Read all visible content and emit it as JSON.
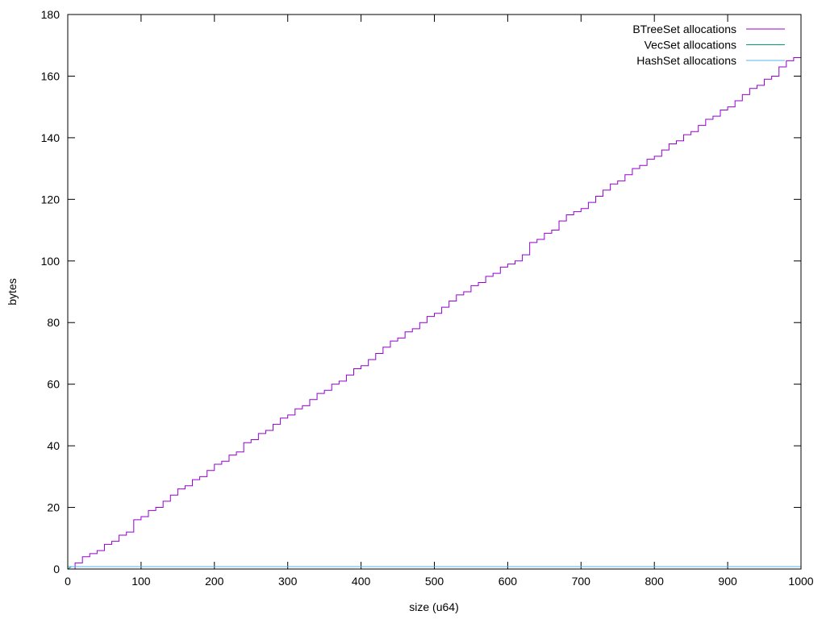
{
  "chart_data": {
    "type": "line",
    "title": "",
    "xlabel": "size (u64)",
    "ylabel": "bytes",
    "xlim": [
      0,
      1000
    ],
    "ylim": [
      0,
      180
    ],
    "xticks": [
      0,
      100,
      200,
      300,
      400,
      500,
      600,
      700,
      800,
      900,
      1000
    ],
    "yticks": [
      0,
      20,
      40,
      60,
      80,
      100,
      120,
      140,
      160,
      180
    ],
    "grid": false,
    "legend_position": "top-right",
    "series": [
      {
        "name": "BTreeSet allocations",
        "color": "#9400d3",
        "style": "steps",
        "x": [
          0,
          10,
          20,
          30,
          40,
          50,
          60,
          70,
          80,
          90,
          100,
          110,
          120,
          130,
          140,
          150,
          160,
          170,
          180,
          190,
          200,
          210,
          220,
          230,
          240,
          250,
          260,
          270,
          280,
          290,
          300,
          310,
          320,
          330,
          340,
          350,
          360,
          370,
          380,
          390,
          400,
          410,
          420,
          430,
          440,
          450,
          460,
          470,
          480,
          490,
          500,
          510,
          520,
          530,
          540,
          550,
          560,
          570,
          580,
          590,
          600,
          610,
          620,
          630,
          640,
          650,
          660,
          670,
          680,
          690,
          700,
          710,
          720,
          730,
          740,
          750,
          760,
          770,
          780,
          790,
          800,
          810,
          820,
          830,
          840,
          850,
          860,
          870,
          880,
          890,
          900,
          910,
          920,
          930,
          940,
          950,
          960,
          970,
          980,
          990,
          1000
        ],
        "y": [
          0,
          2,
          4,
          5,
          6,
          8,
          9,
          11,
          12,
          16,
          17,
          19,
          20,
          22,
          24,
          26,
          27,
          29,
          30,
          32,
          34,
          35,
          37,
          38,
          41,
          42,
          44,
          45,
          47,
          49,
          50,
          52,
          53,
          55,
          57,
          58,
          60,
          61,
          63,
          65,
          66,
          68,
          70,
          72,
          74,
          75,
          77,
          78,
          80,
          82,
          83,
          85,
          87,
          89,
          90,
          92,
          93,
          95,
          96,
          98,
          99,
          100,
          102,
          106,
          107,
          109,
          110,
          113,
          115,
          116,
          117,
          119,
          121,
          123,
          125,
          126,
          128,
          130,
          131,
          133,
          134,
          136,
          138,
          139,
          141,
          142,
          144,
          146,
          147,
          149,
          150,
          152,
          154,
          156,
          157,
          159,
          160,
          163,
          165,
          166,
          167
        ]
      },
      {
        "name": "VecSet allocations",
        "color": "#009e73",
        "style": "lines",
        "x": [
          0,
          5,
          1000
        ],
        "y": [
          0,
          0.8,
          0.8
        ]
      },
      {
        "name": "HashSet allocations",
        "color": "#56b4e9",
        "style": "lines",
        "x": [
          0,
          1000
        ],
        "y": [
          0.8,
          0.8
        ]
      }
    ]
  }
}
